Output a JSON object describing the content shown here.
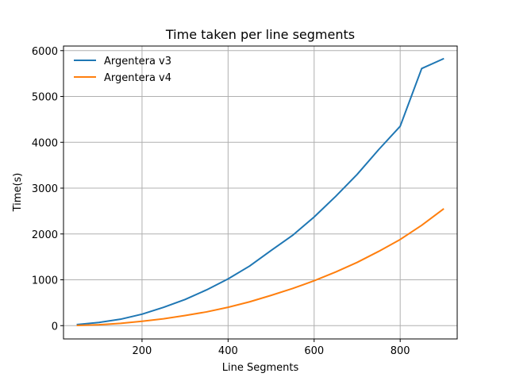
{
  "chart_data": {
    "type": "line",
    "title": "Time taken per line segments",
    "xlabel": "Line Segments",
    "ylabel": "Time(s)",
    "xlim": [
      17.5,
      932.5
    ],
    "ylim": [
      -290,
      6100
    ],
    "xticks": [
      200,
      400,
      600,
      800
    ],
    "yticks": [
      0,
      1000,
      2000,
      3000,
      4000,
      5000,
      6000
    ],
    "grid": true,
    "legend_position": "top-left",
    "x": [
      50,
      100,
      150,
      200,
      250,
      300,
      350,
      400,
      450,
      500,
      550,
      600,
      650,
      700,
      750,
      800,
      850,
      900
    ],
    "series": [
      {
        "name": "Argentera v3",
        "color": "#1f77b4",
        "values": [
          25,
          70,
          140,
          250,
          400,
          570,
          780,
          1020,
          1300,
          1640,
          1970,
          2370,
          2820,
          3300,
          3840,
          4350,
          5610,
          5820
        ]
      },
      {
        "name": "Argentera v4",
        "color": "#ff7f0e",
        "values": [
          5,
          20,
          50,
          95,
          150,
          220,
          300,
          400,
          520,
          660,
          810,
          980,
          1170,
          1380,
          1620,
          1880,
          2190,
          2540
        ]
      }
    ]
  }
}
